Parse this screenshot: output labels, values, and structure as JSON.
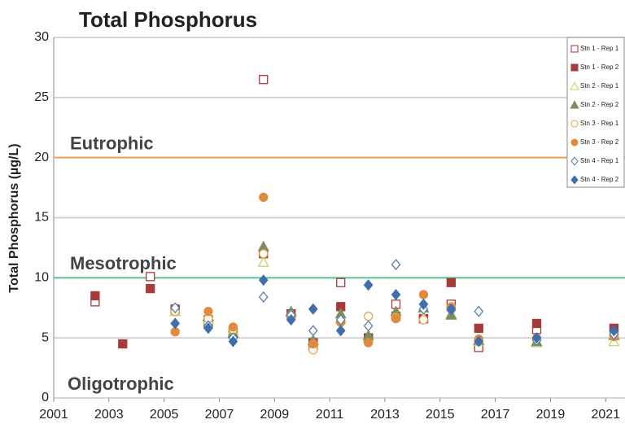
{
  "chart_data": {
    "type": "scatter",
    "title": "Total Phosphorus",
    "y_label": "Total Phosphorus (µg/L)",
    "xlim": [
      2001,
      2021.7
    ],
    "ylim": [
      0,
      30
    ],
    "xticks": [
      2001,
      2003,
      2005,
      2007,
      2009,
      2011,
      2013,
      2015,
      2017,
      2019,
      2021
    ],
    "yticks": [
      0,
      5,
      10,
      15,
      20,
      25,
      30
    ],
    "grid": true,
    "legend": "top-right",
    "zones": [
      {
        "label": "Eutrophic",
        "line": 20,
        "color": "#f0a050"
      },
      {
        "label": "Mesotrophic",
        "line": 10,
        "color": "#5cc48a"
      },
      {
        "label": "Oligotrophic"
      }
    ],
    "series": [
      {
        "name": "Stn 1 - Rep 1",
        "color": "#a83a3a",
        "marker": "square",
        "filled": false,
        "x": [
          2002.5,
          2004.5,
          2005.4,
          2006.6,
          2007.5,
          2008.6,
          2009.6,
          2010.4,
          2011.4,
          2012.4,
          2013.4,
          2014.4,
          2015.4,
          2016.4,
          2018.5,
          2021.3
        ],
        "values": [
          8.0,
          10.1,
          7.4,
          6.2,
          5.3,
          26.5,
          7.0,
          4.6,
          9.6,
          5.0,
          7.8,
          6.6,
          7.8,
          4.2,
          5.7,
          5.5
        ]
      },
      {
        "name": "Stn 1 - Rep 2",
        "color": "#a83a3a",
        "marker": "square",
        "filled": true,
        "x": [
          2002.5,
          2003.5,
          2004.5,
          2005.4,
          2006.6,
          2007.5,
          2008.6,
          2009.6,
          2010.4,
          2011.4,
          2012.4,
          2013.4,
          2014.4,
          2015.4,
          2016.4,
          2018.5,
          2021.3
        ],
        "values": [
          8.5,
          4.5,
          9.1,
          7.3,
          6.5,
          5.5,
          12.0,
          7.0,
          4.6,
          7.6,
          5.0,
          6.8,
          6.6,
          9.6,
          5.8,
          6.2,
          5.8
        ]
      },
      {
        "name": "Stn 2 - Rep 1",
        "color": "#c2d36a",
        "marker": "triangle",
        "filled": false,
        "x": [
          2005.4,
          2006.6,
          2007.5,
          2008.6,
          2009.6,
          2010.4,
          2011.4,
          2012.4,
          2013.4,
          2014.4,
          2015.4,
          2016.4,
          2018.5,
          2021.3
        ],
        "values": [
          7.2,
          6.5,
          5.6,
          11.3,
          7.1,
          4.4,
          6.6,
          5.0,
          7.0,
          6.7,
          7.0,
          4.7,
          4.6,
          4.7
        ]
      },
      {
        "name": "Stn 2 - Rep 2",
        "color": "#7d8f5a",
        "marker": "triangle",
        "filled": true,
        "x": [
          2006.6,
          2007.5,
          2008.6,
          2009.6,
          2010.4,
          2011.4,
          2012.4,
          2013.4,
          2014.4,
          2015.4,
          2016.4,
          2018.5,
          2021.3
        ],
        "values": [
          6.8,
          5.4,
          12.6,
          7.2,
          4.8,
          7.0,
          5.2,
          7.2,
          7.5,
          6.9,
          4.8,
          4.7,
          5.2
        ]
      },
      {
        "name": "Stn 3 - Rep 1",
        "color": "#e8a448",
        "marker": "circle",
        "filled": false,
        "x": [
          2005.4,
          2006.6,
          2007.5,
          2008.6,
          2009.6,
          2010.4,
          2011.4,
          2012.4,
          2013.4,
          2014.4,
          2015.4,
          2016.4,
          2018.5,
          2021.3
        ],
        "values": [
          7.2,
          6.6,
          5.7,
          12.0,
          6.8,
          4.0,
          6.4,
          6.8,
          6.7,
          6.5,
          7.6,
          4.8,
          5.0,
          5.3
        ]
      },
      {
        "name": "Stn 3 - Rep 2",
        "color": "#e08a3c",
        "marker": "circle",
        "filled": true,
        "x": [
          2005.4,
          2006.6,
          2007.5,
          2008.6,
          2009.6,
          2010.4,
          2011.4,
          2012.4,
          2013.4,
          2014.4,
          2015.4,
          2016.4,
          2018.5,
          2021.3
        ],
        "values": [
          5.5,
          7.2,
          5.9,
          16.7,
          6.7,
          4.5,
          6.3,
          4.6,
          6.6,
          8.6,
          7.5,
          4.9,
          4.9,
          5.1
        ]
      },
      {
        "name": "Stn 4 - Rep 1",
        "color": "#5a7fb0",
        "marker": "diamond",
        "filled": false,
        "x": [
          2005.4,
          2006.6,
          2007.5,
          2008.6,
          2009.6,
          2010.4,
          2011.4,
          2012.4,
          2013.4,
          2014.4,
          2015.4,
          2016.4,
          2018.5,
          2021.3
        ],
        "values": [
          7.5,
          6.0,
          5.0,
          8.4,
          6.9,
          5.6,
          6.5,
          6.0,
          11.1,
          7.4,
          7.3,
          7.2,
          4.8,
          5.3
        ]
      },
      {
        "name": "Stn 4 - Rep 2",
        "color": "#3f6fae",
        "marker": "diamond",
        "filled": true,
        "x": [
          2005.4,
          2006.6,
          2007.5,
          2008.6,
          2009.6,
          2010.4,
          2011.4,
          2012.4,
          2013.4,
          2014.4,
          2015.4,
          2016.4,
          2018.5,
          2021.3
        ],
        "values": [
          6.2,
          5.8,
          4.7,
          9.8,
          6.5,
          7.4,
          5.6,
          9.4,
          8.6,
          7.8,
          7.4,
          4.7,
          5.0,
          5.6
        ]
      }
    ]
  }
}
